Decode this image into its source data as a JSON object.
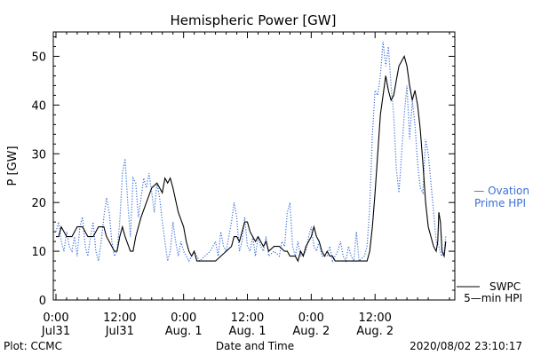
{
  "chart_data": {
    "type": "line",
    "title": "Hemispheric Power [GW]",
    "xlabel": "Date and Time",
    "ylabel": "P [GW]",
    "ylim": [
      0,
      55
    ],
    "yticks": [
      0,
      10,
      20,
      30,
      40,
      50
    ],
    "xlim_hours": [
      -0.5,
      75
    ],
    "xticks": [
      {
        "hour": 0,
        "line1": "0:00",
        "line2": "Jul31"
      },
      {
        "hour": 12,
        "line1": "12:00",
        "line2": "Jul31"
      },
      {
        "hour": 24,
        "line1": "0:00",
        "line2": "Aug. 1"
      },
      {
        "hour": 36,
        "line1": "12:00",
        "line2": "Aug. 1"
      },
      {
        "hour": 48,
        "line1": "0:00",
        "line2": "Aug. 2"
      },
      {
        "hour": 60,
        "line1": "12:00",
        "line2": "Aug. 2"
      }
    ],
    "series": [
      {
        "name": "SWPC 5-min HPI",
        "legend_line1": "SWPC",
        "legend_line2": "5—min HPI",
        "color": "#000000",
        "style": "solid",
        "points": [
          [
            0,
            13
          ],
          [
            0.5,
            13
          ],
          [
            1,
            15
          ],
          [
            2,
            13
          ],
          [
            3,
            13
          ],
          [
            4,
            15
          ],
          [
            5,
            15
          ],
          [
            6,
            13
          ],
          [
            7,
            13
          ],
          [
            8,
            15
          ],
          [
            9,
            15
          ],
          [
            9.5,
            13
          ],
          [
            10,
            12
          ],
          [
            11,
            10
          ],
          [
            11.5,
            10
          ],
          [
            12,
            13
          ],
          [
            12.5,
            15
          ],
          [
            13,
            13
          ],
          [
            14,
            10
          ],
          [
            14.5,
            10
          ],
          [
            15,
            13
          ],
          [
            16,
            17
          ],
          [
            17,
            20
          ],
          [
            18,
            23
          ],
          [
            19,
            24
          ],
          [
            20,
            22
          ],
          [
            20.5,
            25
          ],
          [
            21,
            24
          ],
          [
            21.5,
            25
          ],
          [
            22,
            23
          ],
          [
            23,
            18
          ],
          [
            24,
            15
          ],
          [
            24.5,
            12
          ],
          [
            25,
            10
          ],
          [
            25.5,
            9
          ],
          [
            26,
            10
          ],
          [
            26.5,
            8
          ],
          [
            27,
            8
          ],
          [
            28,
            8
          ],
          [
            29,
            8
          ],
          [
            30,
            8
          ],
          [
            31,
            9
          ],
          [
            32,
            10
          ],
          [
            33,
            11
          ],
          [
            33.5,
            13
          ],
          [
            34,
            13
          ],
          [
            34.5,
            12
          ],
          [
            35,
            14
          ],
          [
            35.5,
            16
          ],
          [
            36,
            16
          ],
          [
            36.5,
            14
          ],
          [
            37,
            13
          ],
          [
            37.5,
            12
          ],
          [
            38,
            13
          ],
          [
            39,
            11
          ],
          [
            39.5,
            12
          ],
          [
            40,
            10
          ],
          [
            41,
            11
          ],
          [
            42,
            11
          ],
          [
            43,
            10
          ],
          [
            43.5,
            10
          ],
          [
            44,
            9
          ],
          [
            45,
            9
          ],
          [
            45.5,
            8
          ],
          [
            46,
            10
          ],
          [
            46.5,
            9
          ],
          [
            47,
            11
          ],
          [
            47.5,
            12
          ],
          [
            48,
            13
          ],
          [
            48.5,
            15
          ],
          [
            49,
            13
          ],
          [
            49.5,
            12
          ],
          [
            50,
            10
          ],
          [
            50.5,
            9
          ],
          [
            51,
            10
          ],
          [
            51.5,
            9
          ],
          [
            52,
            9
          ],
          [
            52.5,
            8
          ],
          [
            53,
            8
          ],
          [
            54,
            8
          ],
          [
            55,
            8
          ],
          [
            56,
            8
          ],
          [
            57,
            8
          ],
          [
            58,
            8
          ],
          [
            58.5,
            8
          ],
          [
            59,
            10
          ],
          [
            59.5,
            15
          ],
          [
            60,
            22
          ],
          [
            60.5,
            30
          ],
          [
            61,
            38
          ],
          [
            61.5,
            42
          ],
          [
            62,
            46
          ],
          [
            62.5,
            43
          ],
          [
            63,
            41
          ],
          [
            63.5,
            42
          ],
          [
            64,
            45
          ],
          [
            64.5,
            48
          ],
          [
            65,
            49
          ],
          [
            65.5,
            50
          ],
          [
            66,
            48
          ],
          [
            66.5,
            44
          ],
          [
            67,
            41
          ],
          [
            67.5,
            43
          ],
          [
            68,
            40
          ],
          [
            68.5,
            35
          ],
          [
            69,
            28
          ],
          [
            69.5,
            20
          ],
          [
            70,
            15
          ],
          [
            70.5,
            13
          ],
          [
            71,
            11
          ],
          [
            71.5,
            10
          ],
          [
            71.8,
            12
          ],
          [
            72,
            18
          ],
          [
            72.3,
            16
          ],
          [
            72.6,
            10
          ],
          [
            73,
            9
          ],
          [
            73.3,
            12
          ]
        ]
      },
      {
        "name": "Ovation Prime HPI",
        "legend_line1": "— Ovation",
        "legend_line2": "Prime HPI",
        "color": "#3a6fd8",
        "style": "dotted",
        "points": [
          [
            0,
            14
          ],
          [
            0.5,
            16
          ],
          [
            1,
            12
          ],
          [
            1.5,
            10
          ],
          [
            2,
            14
          ],
          [
            2.5,
            11
          ],
          [
            3,
            10
          ],
          [
            3.5,
            13
          ],
          [
            4,
            9
          ],
          [
            4.5,
            15
          ],
          [
            5,
            17
          ],
          [
            5.5,
            11
          ],
          [
            6,
            9
          ],
          [
            6.5,
            13
          ],
          [
            7,
            16
          ],
          [
            7.5,
            10
          ],
          [
            8,
            8
          ],
          [
            8.5,
            12
          ],
          [
            9,
            17
          ],
          [
            9.5,
            21
          ],
          [
            10,
            18
          ],
          [
            10.5,
            12
          ],
          [
            11,
            9
          ],
          [
            11.5,
            10
          ],
          [
            12,
            16
          ],
          [
            12.5,
            26
          ],
          [
            13,
            29
          ],
          [
            13.5,
            20
          ],
          [
            14,
            13
          ],
          [
            14.5,
            25
          ],
          [
            15,
            24
          ],
          [
            15.5,
            17
          ],
          [
            16,
            21
          ],
          [
            16.5,
            25
          ],
          [
            17,
            23
          ],
          [
            17.5,
            26
          ],
          [
            18,
            22
          ],
          [
            18.5,
            18
          ],
          [
            19,
            24
          ],
          [
            19.5,
            21
          ],
          [
            20,
            16
          ],
          [
            20.5,
            12
          ],
          [
            21,
            8
          ],
          [
            21.5,
            10
          ],
          [
            22,
            16
          ],
          [
            22.5,
            12
          ],
          [
            23,
            9
          ],
          [
            23.5,
            12
          ],
          [
            24,
            10
          ],
          [
            25,
            8
          ],
          [
            26,
            10
          ],
          [
            27,
            8
          ],
          [
            28,
            9
          ],
          [
            29,
            10
          ],
          [
            30,
            12
          ],
          [
            30.5,
            9
          ],
          [
            31,
            14
          ],
          [
            31.5,
            11
          ],
          [
            32,
            10
          ],
          [
            33,
            16
          ],
          [
            33.5,
            20
          ],
          [
            34,
            17
          ],
          [
            34.5,
            10
          ],
          [
            35,
            12
          ],
          [
            35.5,
            17
          ],
          [
            36,
            11
          ],
          [
            36.5,
            10
          ],
          [
            37,
            13
          ],
          [
            37.5,
            9
          ],
          [
            38,
            13
          ],
          [
            38.5,
            11
          ],
          [
            39,
            10
          ],
          [
            39.5,
            13
          ],
          [
            40,
            9
          ],
          [
            41,
            10
          ],
          [
            42,
            9
          ],
          [
            42.5,
            12
          ],
          [
            43,
            11
          ],
          [
            43.5,
            18
          ],
          [
            44,
            20
          ],
          [
            44.5,
            11
          ],
          [
            45,
            9
          ],
          [
            45.5,
            12
          ],
          [
            46,
            9
          ],
          [
            47,
            10
          ],
          [
            47.5,
            13
          ],
          [
            48,
            15
          ],
          [
            48.5,
            11
          ],
          [
            49,
            10
          ],
          [
            49.5,
            12
          ],
          [
            50,
            9
          ],
          [
            51,
            9
          ],
          [
            51.5,
            11
          ],
          [
            52,
            8
          ],
          [
            53,
            10
          ],
          [
            53.5,
            12
          ],
          [
            54,
            9
          ],
          [
            54.5,
            8
          ],
          [
            55,
            11
          ],
          [
            55.5,
            9
          ],
          [
            56,
            8
          ],
          [
            56.5,
            14
          ],
          [
            57,
            8
          ],
          [
            58,
            9
          ],
          [
            58.5,
            11
          ],
          [
            59,
            19
          ],
          [
            59.5,
            34
          ],
          [
            60,
            43
          ],
          [
            60.5,
            42
          ],
          [
            61,
            46
          ],
          [
            61.5,
            53
          ],
          [
            62,
            48
          ],
          [
            62.5,
            52
          ],
          [
            63,
            44
          ],
          [
            63.5,
            38
          ],
          [
            64,
            27
          ],
          [
            64.5,
            22
          ],
          [
            65,
            30
          ],
          [
            65.5,
            38
          ],
          [
            66,
            44
          ],
          [
            66.5,
            33
          ],
          [
            67,
            41
          ],
          [
            67.5,
            36
          ],
          [
            68,
            28
          ],
          [
            68.5,
            23
          ],
          [
            69,
            22
          ],
          [
            69.5,
            33
          ],
          [
            70,
            30
          ],
          [
            70.5,
            24
          ],
          [
            71,
            18
          ],
          [
            71.5,
            12
          ],
          [
            72,
            11
          ],
          [
            72.5,
            9
          ],
          [
            73,
            10
          ],
          [
            73.3,
            13
          ]
        ]
      }
    ],
    "footer": {
      "left": "Plot: CCMC",
      "right": "2020/08/02 23:10:17"
    }
  }
}
